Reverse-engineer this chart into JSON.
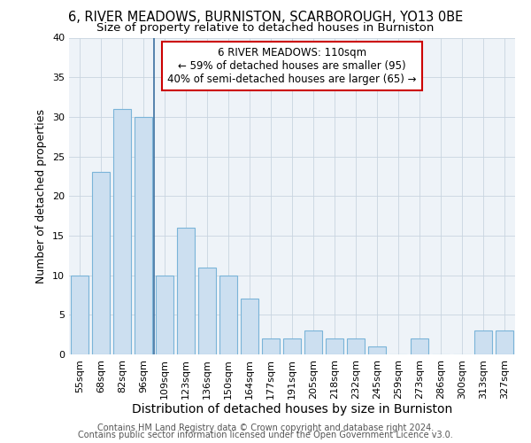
{
  "title": "6, RIVER MEADOWS, BURNISTON, SCARBOROUGH, YO13 0BE",
  "subtitle": "Size of property relative to detached houses in Burniston",
  "xlabel": "Distribution of detached houses by size in Burniston",
  "ylabel": "Number of detached properties",
  "categories": [
    "55sqm",
    "68sqm",
    "82sqm",
    "96sqm",
    "109sqm",
    "123sqm",
    "136sqm",
    "150sqm",
    "164sqm",
    "177sqm",
    "191sqm",
    "205sqm",
    "218sqm",
    "232sqm",
    "245sqm",
    "259sqm",
    "273sqm",
    "286sqm",
    "300sqm",
    "313sqm",
    "327sqm"
  ],
  "values": [
    10,
    23,
    31,
    30,
    10,
    16,
    11,
    10,
    7,
    2,
    2,
    3,
    2,
    2,
    1,
    0,
    2,
    0,
    0,
    3,
    3
  ],
  "bar_color": "#ccdff0",
  "bar_edge_color": "#7ab4d8",
  "vline_x": 3.5,
  "vline_color": "#3a6fa0",
  "annotation_text": "6 RIVER MEADOWS: 110sqm\n← 59% of detached houses are smaller (95)\n40% of semi-detached houses are larger (65) →",
  "annotation_box_color": "#ffffff",
  "annotation_box_edge_color": "#cc0000",
  "ylim": [
    0,
    40
  ],
  "yticks": [
    0,
    5,
    10,
    15,
    20,
    25,
    30,
    35,
    40
  ],
  "footer_line1": "Contains HM Land Registry data © Crown copyright and database right 2024.",
  "footer_line2": "Contains public sector information licensed under the Open Government Licence v3.0.",
  "bg_color": "#ffffff",
  "plot_bg_color": "#eef3f8",
  "title_fontsize": 10.5,
  "subtitle_fontsize": 9.5,
  "xlabel_fontsize": 10,
  "ylabel_fontsize": 9,
  "tick_fontsize": 8,
  "annotation_fontsize": 8.5,
  "footer_fontsize": 7
}
